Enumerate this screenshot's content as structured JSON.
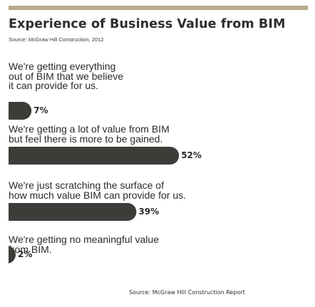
{
  "title": "Experience of Business Value from BIM",
  "source_note": "Source: McGraw Hill Construction, 2012",
  "footer_source": "Source: McGraw Hill Construction Report",
  "colors": {
    "bar": "#3d3c38",
    "top_rule": "#b7a98a"
  },
  "chart_data": {
    "type": "bar",
    "orientation": "horizontal",
    "title": "Experience of Business Value from BIM",
    "categories": [
      "We're getting everything out of BIM that we believe it can provide for us.",
      "We're getting a lot of value from BIM but feel there is more to be gained.",
      "We're just scratching the surface of how much value BIM can provide for us.",
      "We're getting no meaningful value from BIM."
    ],
    "label_lines": [
      [
        "We're getting everything",
        "out of BIM that we believe",
        "it can provide for us."
      ],
      [
        "We're getting a lot of value from BIM",
        "but feel there is more to be gained."
      ],
      [
        "We're just scratching the surface of",
        "how much value BIM can provide for us."
      ],
      [
        "We're getting no meaningful value",
        "from BIM."
      ]
    ],
    "values": [
      7,
      52,
      39,
      2
    ],
    "value_labels": [
      "7%",
      "52%",
      "39%",
      "2%"
    ],
    "unit": "%",
    "xlim": [
      0,
      100
    ],
    "grid": false,
    "legend": "none"
  }
}
